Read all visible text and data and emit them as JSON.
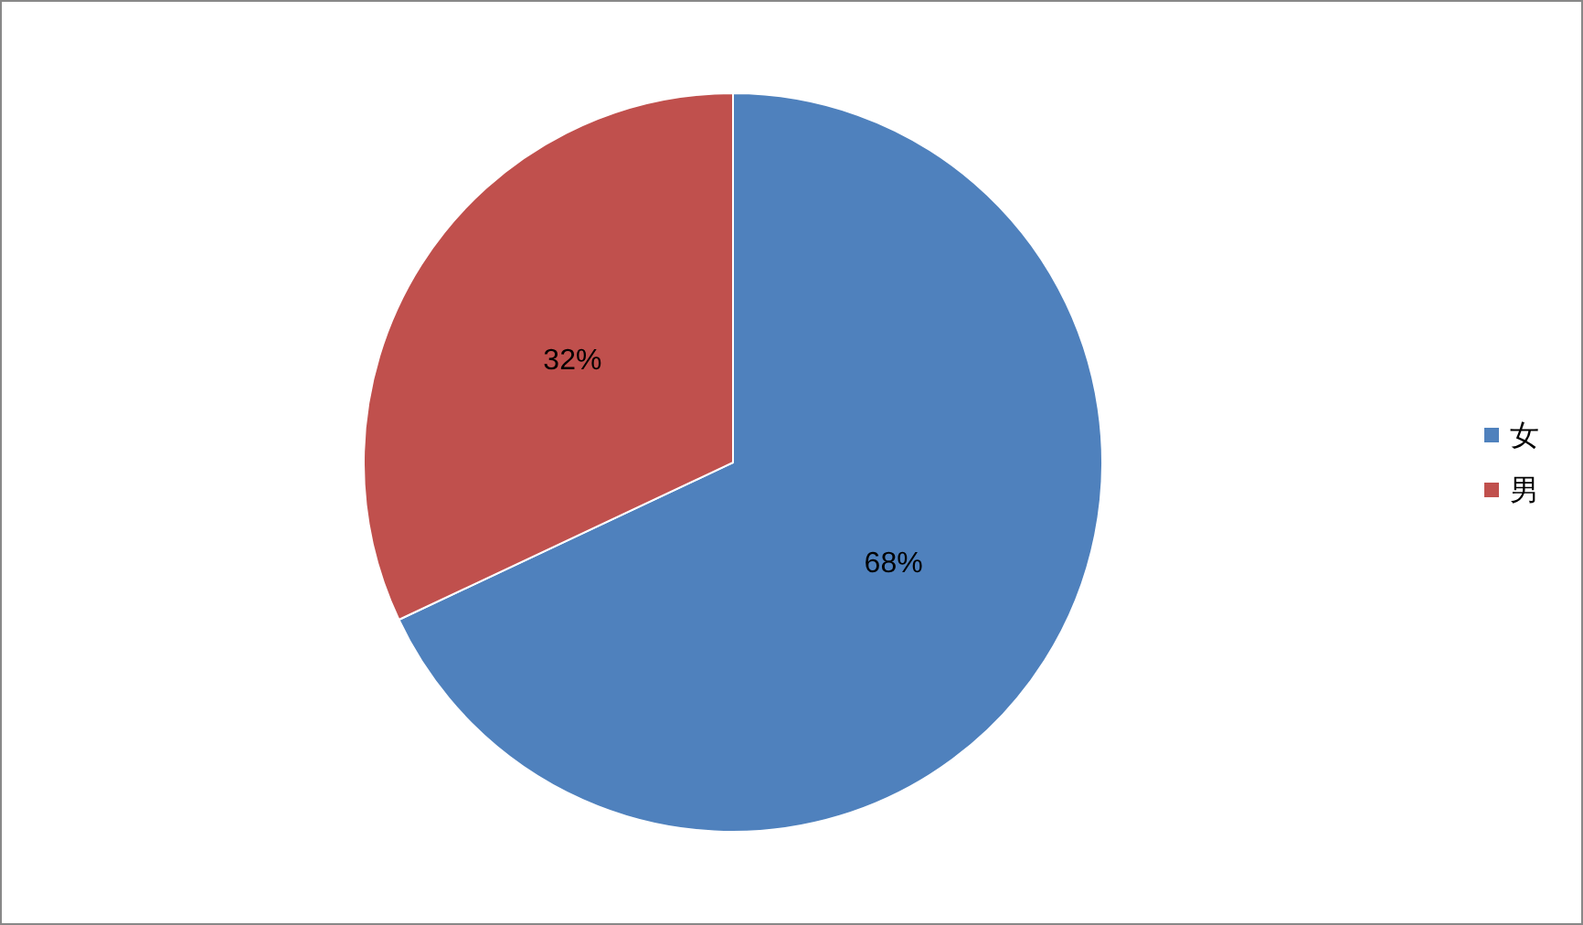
{
  "chart_data": {
    "type": "pie",
    "categories": [
      "女",
      "男"
    ],
    "values": [
      68,
      32
    ],
    "colors": [
      "#4f81bd",
      "#c0504d"
    ],
    "value_labels": [
      "68%",
      "32%"
    ],
    "legend": "right"
  }
}
